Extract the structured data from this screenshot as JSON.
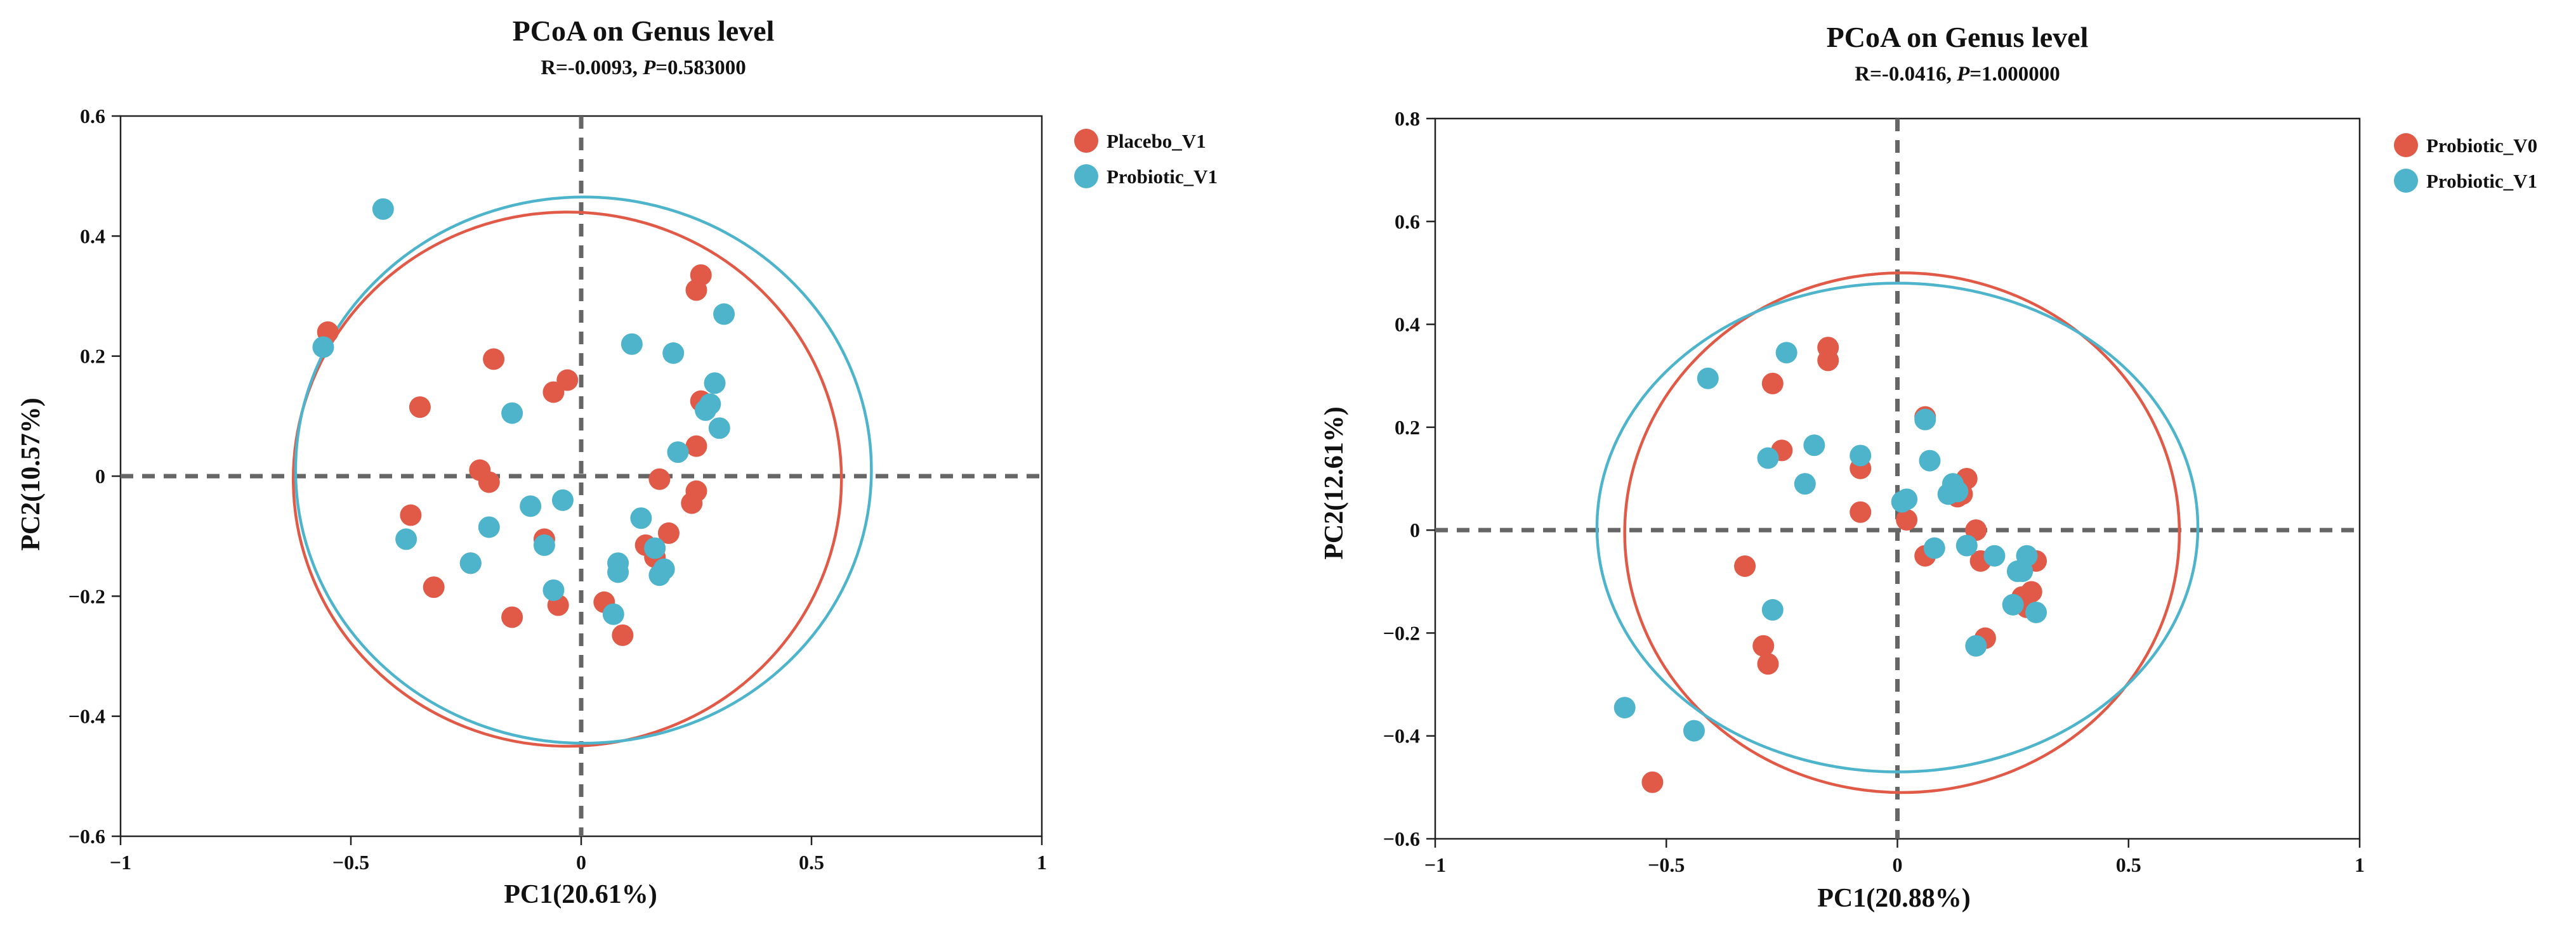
{
  "chart_data": [
    {
      "type": "scatter",
      "title": "PCoA on Genus level",
      "subtitle": {
        "r_text": "R=-0.0093, ",
        "p_label": "P",
        "p_text": "=0.583000"
      },
      "xlabel": "PC1(20.61%)",
      "ylabel": "PC2(10.57%)",
      "xlim": [
        -1,
        1
      ],
      "ylim": [
        -0.6,
        0.6
      ],
      "xticks": [
        -1,
        -0.5,
        0,
        0.5,
        1
      ],
      "xtick_labels": [
        "−1",
        "−0.5",
        "0",
        "0.5",
        "1"
      ],
      "yticks": [
        -0.6,
        -0.4,
        -0.2,
        0,
        0.2,
        0.4,
        0.6
      ],
      "ytick_labels": [
        "−0.6",
        "−0.4",
        "−0.2",
        "0",
        "0.2",
        "0.4",
        "0.6"
      ],
      "legend_position": "top-right",
      "series": [
        {
          "name": "Placebo_V1",
          "color": "#E05A47",
          "points": [
            [
              -0.55,
              0.24
            ],
            [
              -0.19,
              0.195
            ],
            [
              -0.06,
              0.14
            ],
            [
              -0.03,
              0.16
            ],
            [
              -0.35,
              0.115
            ],
            [
              -0.37,
              -0.065
            ],
            [
              -0.32,
              -0.185
            ],
            [
              -0.22,
              0.01
            ],
            [
              -0.2,
              -0.01
            ],
            [
              -0.24,
              -0.145
            ],
            [
              -0.15,
              -0.235
            ],
            [
              -0.08,
              -0.105
            ],
            [
              -0.05,
              -0.215
            ],
            [
              0.05,
              -0.21
            ],
            [
              0.09,
              -0.265
            ],
            [
              0.14,
              -0.115
            ],
            [
              0.16,
              -0.135
            ],
            [
              0.17,
              -0.005
            ],
            [
              0.19,
              -0.095
            ],
            [
              0.24,
              -0.045
            ],
            [
              0.25,
              -0.025
            ],
            [
              0.25,
              0.05
            ],
            [
              0.25,
              0.31
            ],
            [
              0.26,
              0.335
            ],
            [
              0.26,
              0.125
            ]
          ]
        },
        {
          "name": "Probiotic_V1",
          "color": "#4DB4CB",
          "points": [
            [
              -0.43,
              0.445
            ],
            [
              -0.56,
              0.215
            ],
            [
              -0.15,
              0.105
            ],
            [
              -0.38,
              -0.105
            ],
            [
              -0.24,
              -0.145
            ],
            [
              -0.2,
              -0.085
            ],
            [
              -0.11,
              -0.05
            ],
            [
              -0.08,
              -0.115
            ],
            [
              -0.04,
              -0.04
            ],
            [
              -0.06,
              -0.19
            ],
            [
              0.07,
              -0.23
            ],
            [
              0.08,
              -0.145
            ],
            [
              0.08,
              -0.16
            ],
            [
              0.11,
              0.22
            ],
            [
              0.13,
              -0.07
            ],
            [
              0.16,
              -0.12
            ],
            [
              0.17,
              -0.165
            ],
            [
              0.18,
              -0.155
            ],
            [
              0.2,
              0.205
            ],
            [
              0.21,
              0.04
            ],
            [
              0.27,
              0.11
            ],
            [
              0.28,
              0.12
            ],
            [
              0.29,
              0.155
            ],
            [
              0.3,
              0.08
            ],
            [
              0.31,
              0.27
            ]
          ]
        }
      ],
      "ellipses": [
        {
          "series": "Placebo_V1",
          "center": [
            -0.03,
            -0.005
          ],
          "radii": [
            0.595,
            0.445
          ]
        },
        {
          "series": "Probiotic_V1",
          "center": [
            0.005,
            0.01
          ],
          "radii": [
            0.625,
            0.455
          ]
        }
      ],
      "reference_lines": {
        "x": 0,
        "y": 0
      }
    },
    {
      "type": "scatter",
      "title": "PCoA on Genus level",
      "subtitle": {
        "r_text": "R=-0.0416, ",
        "p_label": "P",
        "p_text": "=1.000000"
      },
      "xlabel": "PC1(20.88%)",
      "ylabel": "PC2(12.61%)",
      "xlim": [
        -1,
        1
      ],
      "ylim": [
        -0.6,
        0.8
      ],
      "xticks": [
        -1,
        -0.5,
        0,
        0.5,
        1
      ],
      "xtick_labels": [
        "−1",
        "−0.5",
        "0",
        "0.5",
        "1"
      ],
      "yticks": [
        -0.6,
        -0.4,
        -0.2,
        0,
        0.2,
        0.4,
        0.6,
        0.8
      ],
      "ytick_labels": [
        "−0.6",
        "−0.4",
        "−0.2",
        "0",
        "0.2",
        "0.4",
        "0.6",
        "0.8"
      ],
      "legend_position": "top-right",
      "series": [
        {
          "name": "Probiotic_V0",
          "color": "#E05A47",
          "points": [
            [
              -0.15,
              0.355
            ],
            [
              -0.15,
              0.33
            ],
            [
              -0.27,
              0.285
            ],
            [
              -0.25,
              0.155
            ],
            [
              -0.08,
              0.12
            ],
            [
              -0.08,
              0.035
            ],
            [
              -0.33,
              -0.07
            ],
            [
              -0.29,
              -0.225
            ],
            [
              -0.28,
              -0.26
            ],
            [
              -0.53,
              -0.49
            ],
            [
              0.01,
              0.055
            ],
            [
              0.02,
              0.02
            ],
            [
              0.06,
              0.22
            ],
            [
              0.06,
              -0.05
            ],
            [
              0.13,
              0.065
            ],
            [
              0.14,
              0.07
            ],
            [
              0.15,
              0.1
            ],
            [
              0.17,
              0.0
            ],
            [
              0.18,
              -0.06
            ],
            [
              0.19,
              -0.21
            ],
            [
              0.27,
              -0.13
            ],
            [
              0.28,
              -0.15
            ],
            [
              0.29,
              -0.12
            ],
            [
              0.3,
              -0.06
            ]
          ]
        },
        {
          "name": "Probiotic_V1",
          "color": "#4DB4CB",
          "points": [
            [
              -0.41,
              0.295
            ],
            [
              -0.24,
              0.345
            ],
            [
              -0.28,
              0.14
            ],
            [
              -0.18,
              0.165
            ],
            [
              -0.2,
              0.09
            ],
            [
              -0.08,
              0.145
            ],
            [
              -0.27,
              -0.155
            ],
            [
              -0.59,
              -0.345
            ],
            [
              -0.44,
              -0.39
            ],
            [
              0.01,
              0.055
            ],
            [
              0.02,
              0.06
            ],
            [
              0.06,
              0.215
            ],
            [
              0.07,
              0.135
            ],
            [
              0.08,
              -0.035
            ],
            [
              0.11,
              0.07
            ],
            [
              0.12,
              0.09
            ],
            [
              0.13,
              0.075
            ],
            [
              0.15,
              -0.03
            ],
            [
              0.21,
              -0.05
            ],
            [
              0.25,
              -0.145
            ],
            [
              0.26,
              -0.08
            ],
            [
              0.27,
              -0.08
            ],
            [
              0.28,
              -0.05
            ],
            [
              0.3,
              -0.16
            ],
            [
              0.17,
              -0.225
            ]
          ]
        }
      ],
      "ellipses": [
        {
          "series": "Probiotic_V0",
          "center": [
            0.01,
            -0.005
          ],
          "radii": [
            0.6,
            0.505
          ]
        },
        {
          "series": "Probiotic_V1",
          "center": [
            0.0,
            0.005
          ],
          "radii": [
            0.65,
            0.475
          ]
        }
      ],
      "reference_lines": {
        "x": 0,
        "y": 0
      }
    }
  ]
}
